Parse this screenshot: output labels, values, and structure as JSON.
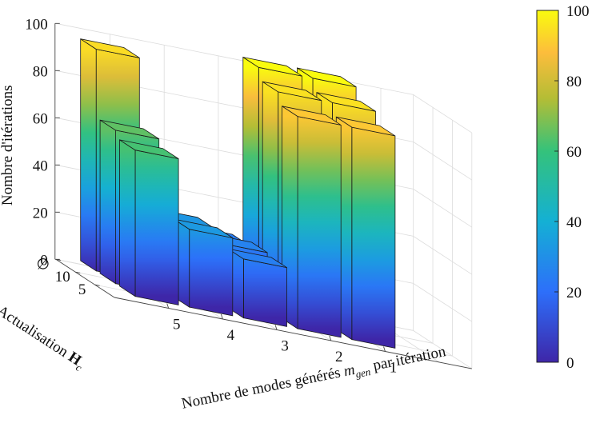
{
  "chart_data": {
    "type": "bar3d",
    "zlabel": "Nombre d'itérations",
    "xlabel": "Nombre de modes générés m_gen par itération",
    "xlabel_parts": {
      "prefix": "Nombre de modes générés ",
      "symbol": "m",
      "sub": "gen",
      "suffix": " par itération"
    },
    "ylabel": "Actualisation H_c",
    "ylabel_parts": {
      "prefix": "Actualisation ",
      "symbol": "H",
      "sub": "c"
    },
    "x_categories": [
      "5",
      "4",
      "3",
      "2",
      "1"
    ],
    "y_categories": [
      "∅",
      "10",
      "5"
    ],
    "z_ticks": [
      "0",
      "20",
      "40",
      "60",
      "80",
      "100"
    ],
    "zlim": [
      0,
      100
    ],
    "values": [
      [
        94,
        25,
        24,
        100,
        100
      ],
      [
        65,
        32,
        26,
        95,
        95
      ],
      [
        62,
        33,
        25,
        90,
        90
      ]
    ],
    "colorbar": {
      "ticks": [
        "0",
        "20",
        "40",
        "60",
        "80",
        "100"
      ],
      "range": [
        0,
        100
      ],
      "colormap": "parula"
    },
    "grid": true
  }
}
